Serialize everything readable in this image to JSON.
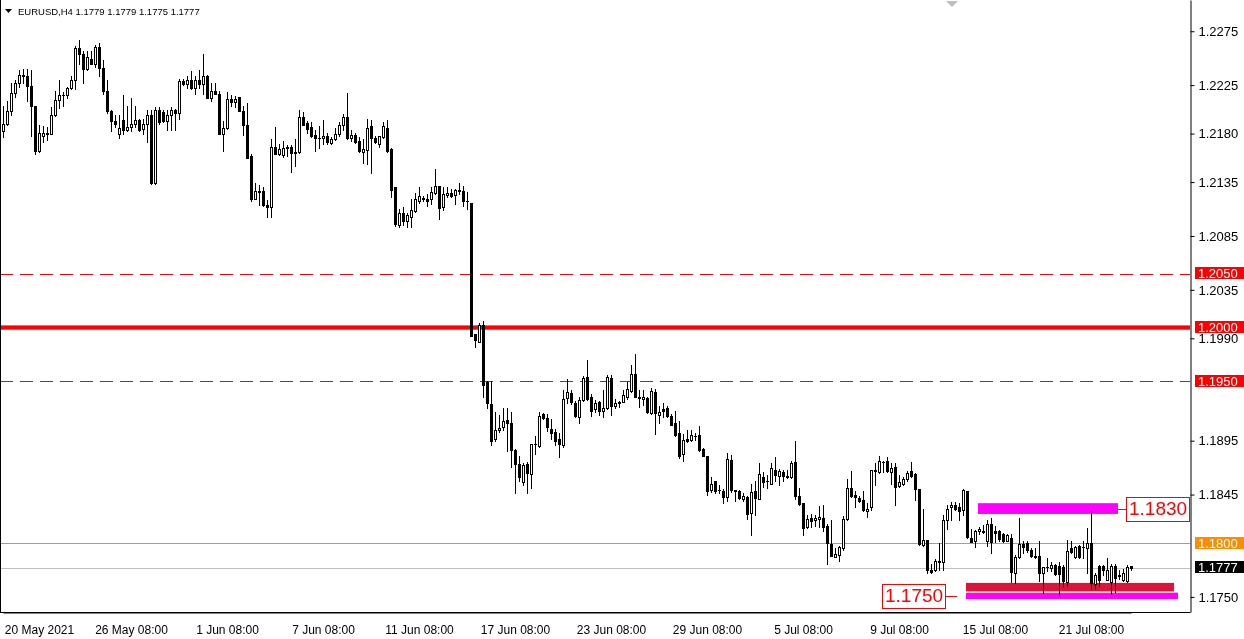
{
  "chart_data": {
    "type": "candlestick",
    "title": "EURUSD,H4 1.1779 1.1779 1.1775 1.1777",
    "categories": [
      null,
      null,
      null,
      null,
      null,
      null,
      null,
      null,
      null,
      "20 May 2021",
      null,
      null,
      null,
      null,
      null,
      null,
      null,
      null,
      null,
      null,
      null,
      null,
      null,
      null,
      null,
      null,
      null,
      null,
      null,
      null,
      null,
      null,
      "26 May 08:00",
      null,
      null,
      null,
      null,
      null,
      null,
      null,
      null,
      null,
      null,
      null,
      null,
      null,
      null,
      null,
      null,
      null,
      null,
      null,
      null,
      null,
      null,
      null,
      "1 Jun 08:00",
      null,
      null,
      null,
      null,
      null,
      null,
      null,
      null,
      null,
      null,
      null,
      null,
      null,
      null,
      null,
      null,
      null,
      null,
      null,
      null,
      null,
      null,
      null,
      "7 Jun 08:00",
      null,
      null,
      null,
      null,
      null,
      null,
      null,
      null,
      null,
      null,
      null,
      null,
      null,
      null,
      null,
      null,
      null,
      null,
      null,
      null,
      null,
      null,
      null,
      "11 Jun 08:00",
      null,
      null,
      null,
      null,
      null,
      null,
      null,
      null,
      null,
      null,
      null,
      null,
      null,
      null,
      null,
      null,
      null,
      null,
      null,
      null,
      null,
      null,
      null,
      "17 Jun 08:00",
      null,
      null,
      null,
      null,
      null,
      null,
      null,
      null,
      null,
      null,
      null,
      null,
      null,
      null,
      null,
      null,
      null,
      null,
      null,
      null,
      null,
      null,
      null,
      "23 Jun 08:00",
      null,
      null,
      null,
      null,
      null,
      null,
      null,
      null,
      null,
      null,
      null,
      null,
      null,
      null,
      null,
      null,
      null,
      null,
      null,
      null,
      null,
      null,
      null,
      "29 Jun 08:00",
      null,
      null,
      null,
      null,
      null,
      null,
      null,
      null,
      null,
      null,
      null,
      null,
      null,
      null,
      null,
      null,
      null,
      null,
      null,
      null,
      null,
      null,
      null,
      "5 Jul 08:00",
      null,
      null,
      null,
      null,
      null,
      null,
      null,
      null,
      null,
      null,
      null,
      null,
      null,
      null,
      null,
      null,
      null,
      null,
      null,
      null,
      null,
      null,
      null,
      "9 Jul 08:00",
      null,
      null,
      null,
      null,
      null,
      null,
      null,
      null,
      null,
      null,
      null,
      null,
      null,
      null,
      null,
      null,
      null,
      null,
      null,
      null,
      null,
      null,
      null,
      "15 Jul 08:00",
      null,
      null,
      null,
      null,
      null,
      null,
      null,
      null,
      null,
      null,
      null,
      null,
      null,
      null,
      null,
      null,
      null,
      null,
      null,
      null,
      null,
      null,
      null,
      "21 Jul 08:00",
      null,
      null,
      null,
      null,
      null,
      null,
      null,
      null,
      null,
      null
    ],
    "ohlc": [
      [
        1.2182,
        1.2206,
        1.2177,
        1.2189
      ],
      [
        1.2189,
        1.221,
        1.2188,
        1.2201
      ],
      [
        1.2201,
        1.2227,
        1.2197,
        1.2218
      ],
      [
        1.2218,
        1.223,
        1.2214,
        1.2227
      ],
      [
        1.2227,
        1.2239,
        1.2223,
        1.2234
      ],
      [
        1.2233,
        1.224,
        1.2227,
        1.2234
      ],
      [
        1.2233,
        1.224,
        1.221,
        1.2224
      ],
      [
        1.2224,
        1.2239,
        1.2178,
        1.2206
      ],
      [
        1.2206,
        1.2206,
        1.2161,
        1.2164
      ],
      [
        1.2164,
        1.2188,
        1.2163,
        1.2181
      ],
      [
        1.2178,
        1.2187,
        1.2172,
        1.2181
      ],
      [
        1.2181,
        1.2186,
        1.2174,
        1.218
      ],
      [
        1.218,
        1.2205,
        1.218,
        1.2197
      ],
      [
        1.2197,
        1.222,
        1.2196,
        1.2211
      ],
      [
        1.2211,
        1.223,
        1.2204,
        1.2216
      ],
      [
        1.2216,
        1.2219,
        1.2206,
        1.2216
      ],
      [
        1.2216,
        1.2223,
        1.2213,
        1.2222
      ],
      [
        1.2222,
        1.2233,
        1.2221,
        1.223
      ],
      [
        1.223,
        1.2261,
        1.2221,
        1.2259
      ],
      [
        1.2259,
        1.2267,
        1.2245,
        1.2254
      ],
      [
        1.2254,
        1.2257,
        1.2227,
        1.224
      ],
      [
        1.224,
        1.2257,
        1.2239,
        1.2251
      ],
      [
        1.2249,
        1.2257,
        1.2245,
        1.2245
      ],
      [
        1.2245,
        1.2262,
        1.2242,
        1.226
      ],
      [
        1.226,
        1.2264,
        1.2233,
        1.2241
      ],
      [
        1.2241,
        1.2248,
        1.2217,
        1.222
      ],
      [
        1.222,
        1.223,
        1.2199,
        1.2201
      ],
      [
        1.2201,
        1.2202,
        1.2182,
        1.2192
      ],
      [
        1.2192,
        1.2197,
        1.2186,
        1.2189
      ],
      [
        1.218,
        1.2197,
        1.2176,
        1.2185
      ],
      [
        1.2193,
        1.2216,
        1.218,
        1.2183
      ],
      [
        1.2183,
        1.2206,
        1.2182,
        1.2186
      ],
      [
        1.2186,
        1.2213,
        1.2182,
        1.2189
      ],
      [
        1.2189,
        1.2206,
        1.2186,
        1.2193
      ],
      [
        1.2193,
        1.2194,
        1.2182,
        1.2183
      ],
      [
        1.2184,
        1.2194,
        1.218,
        1.2189
      ],
      [
        1.2189,
        1.2202,
        1.2172,
        1.2197
      ],
      [
        1.2197,
        1.2202,
        1.2133,
        1.2134
      ],
      [
        1.2134,
        1.2205,
        1.2133,
        1.2202
      ],
      [
        1.2202,
        1.2205,
        1.2189,
        1.2191
      ],
      [
        1.22,
        1.2202,
        1.2191,
        1.2192
      ],
      [
        1.2192,
        1.2202,
        1.2183,
        1.2197
      ],
      [
        1.2197,
        1.2205,
        1.2183,
        1.2202
      ],
      [
        1.2202,
        1.2203,
        1.2183,
        1.2199
      ],
      [
        1.2199,
        1.2231,
        1.2194,
        1.2229
      ],
      [
        1.2229,
        1.2231,
        1.2225,
        1.2226
      ],
      [
        1.2226,
        1.2233,
        1.2222,
        1.223
      ],
      [
        1.223,
        1.2238,
        1.2221,
        1.2222
      ],
      [
        1.2222,
        1.2233,
        1.2217,
        1.223
      ],
      [
        1.223,
        1.2239,
        1.2222,
        1.2226
      ],
      [
        1.2226,
        1.2254,
        1.2217,
        1.2233
      ],
      [
        1.2233,
        1.2234,
        1.2213,
        1.2213
      ],
      [
        1.2213,
        1.2227,
        1.221,
        1.222
      ],
      [
        1.222,
        1.2227,
        1.2217,
        1.2217
      ],
      [
        1.2217,
        1.222,
        1.218,
        1.218
      ],
      [
        1.218,
        1.2192,
        1.2164,
        1.2185
      ],
      [
        1.2185,
        1.2219,
        1.2184,
        1.2212
      ],
      [
        1.2212,
        1.2216,
        1.2206,
        1.2209
      ],
      [
        1.2209,
        1.2215,
        1.2205,
        1.2212
      ],
      [
        1.2214,
        1.2214,
        1.2201,
        1.2201
      ],
      [
        1.2201,
        1.2206,
        1.2179,
        1.2188
      ],
      [
        1.2188,
        1.2208,
        1.2157,
        1.2157
      ],
      [
        1.2159,
        1.2161,
        1.2117,
        1.2119
      ],
      [
        1.2119,
        1.2134,
        1.2119,
        1.2127
      ],
      [
        1.2127,
        1.2132,
        1.2114,
        1.2126
      ],
      [
        1.2127,
        1.213,
        1.2113,
        1.2114
      ],
      [
        1.2114,
        1.2118,
        1.2103,
        1.2112
      ],
      [
        1.2112,
        1.2175,
        1.2103,
        1.2168
      ],
      [
        1.2168,
        1.2186,
        1.2161,
        1.2161
      ],
      [
        1.2161,
        1.217,
        1.216,
        1.2166
      ],
      [
        1.216,
        1.2173,
        1.2158,
        1.2167
      ],
      [
        1.2167,
        1.2169,
        1.2159,
        1.2168
      ],
      [
        1.2168,
        1.2169,
        1.2144,
        1.2162
      ],
      [
        1.2163,
        1.2175,
        1.215,
        1.2162
      ],
      [
        1.2163,
        1.2202,
        1.2162,
        1.2195
      ],
      [
        1.2195,
        1.22,
        1.2188,
        1.2188
      ],
      [
        1.219,
        1.2192,
        1.2181,
        1.2184
      ],
      [
        1.2186,
        1.2191,
        1.2177,
        1.2178
      ],
      [
        1.2179,
        1.2183,
        1.2164,
        1.2176
      ],
      [
        1.2176,
        1.2187,
        1.2167,
        1.2176
      ],
      [
        1.2176,
        1.2193,
        1.217,
        1.2178
      ],
      [
        1.2178,
        1.2181,
        1.217,
        1.2172
      ],
      [
        1.2171,
        1.2177,
        1.217,
        1.2175
      ],
      [
        1.2175,
        1.2185,
        1.2174,
        1.218
      ],
      [
        1.218,
        1.2191,
        1.2178,
        1.2188
      ],
      [
        1.2188,
        1.2198,
        1.2183,
        1.2195
      ],
      [
        1.2195,
        1.2218,
        1.2175,
        1.2176
      ],
      [
        1.2176,
        1.2183,
        1.2173,
        1.2179
      ],
      [
        1.2179,
        1.2181,
        1.2171,
        1.2172
      ],
      [
        1.2173,
        1.2177,
        1.2163,
        1.2164
      ],
      [
        1.2163,
        1.2175,
        1.2153,
        1.2166
      ],
      [
        1.2165,
        1.2194,
        1.2152,
        1.2185
      ],
      [
        1.2187,
        1.2193,
        1.2143,
        1.2176
      ],
      [
        1.2176,
        1.2178,
        1.2171,
        1.2172
      ],
      [
        1.217,
        1.2178,
        1.2168,
        1.2178
      ],
      [
        1.2177,
        1.2191,
        1.2176,
        1.2187
      ],
      [
        1.2185,
        1.2193,
        1.2163,
        1.2164
      ],
      [
        1.2166,
        1.2167,
        1.2121,
        1.2128
      ],
      [
        1.213,
        1.213,
        1.2094,
        1.2096
      ],
      [
        1.2095,
        1.211,
        1.2093,
        1.2106
      ],
      [
        1.2106,
        1.2112,
        1.2095,
        1.2099
      ],
      [
        1.2099,
        1.2106,
        1.2093,
        1.2104
      ],
      [
        1.2103,
        1.2119,
        1.2093,
        1.2109
      ],
      [
        1.2108,
        1.2125,
        1.2107,
        1.2119
      ],
      [
        1.2117,
        1.213,
        1.2116,
        1.2122
      ],
      [
        1.212,
        1.2122,
        1.2117,
        1.2119
      ],
      [
        1.2119,
        1.2124,
        1.2113,
        1.2117
      ],
      [
        1.2119,
        1.213,
        1.2115,
        1.2126
      ],
      [
        1.2125,
        1.2147,
        1.2124,
        1.2131
      ],
      [
        1.2131,
        1.2131,
        1.2101,
        1.2111
      ],
      [
        1.2112,
        1.213,
        1.2109,
        1.2124
      ],
      [
        1.2123,
        1.213,
        1.2121,
        1.2125
      ],
      [
        1.2125,
        1.2129,
        1.2121,
        1.2122
      ],
      [
        1.2123,
        1.2129,
        1.2115,
        1.2128
      ],
      [
        1.2128,
        1.2134,
        1.2124,
        1.2127
      ],
      [
        1.2127,
        1.2131,
        1.2113,
        1.2117
      ],
      [
        1.2117,
        1.2126,
        1.211,
        1.2117
      ],
      [
        1.2116,
        1.2116,
        1.1992,
        1.1992
      ],
      [
        1.1994,
        1.1994,
        1.1982,
        1.1988
      ],
      [
        1.1987,
        1.2004,
        1.1987,
        1.2002
      ],
      [
        1.2002,
        1.2006,
        1.1936,
        1.1947
      ],
      [
        1.1949,
        1.195,
        1.1925,
        1.193
      ],
      [
        1.1929,
        1.195,
        1.1891,
        1.1895
      ],
      [
        1.1897,
        1.1922,
        1.1895,
        1.1905
      ],
      [
        1.1905,
        1.1919,
        1.1903,
        1.1907
      ],
      [
        1.1908,
        1.1925,
        1.1905,
        1.1913
      ],
      [
        1.1914,
        1.1925,
        1.1885,
        1.1911
      ],
      [
        1.1911,
        1.1922,
        1.1871,
        1.1886
      ],
      [
        1.1886,
        1.1887,
        1.1846,
        1.1873
      ],
      [
        1.1873,
        1.1881,
        1.1858,
        1.1861
      ],
      [
        1.1857,
        1.1874,
        1.1854,
        1.1872
      ],
      [
        1.1873,
        1.1875,
        1.1846,
        1.1865
      ],
      [
        1.1864,
        1.1892,
        1.1851,
        1.1892
      ],
      [
        1.1892,
        1.1899,
        1.1883,
        1.1892
      ],
      [
        1.189,
        1.1922,
        1.1889,
        1.1918
      ],
      [
        1.192,
        1.1921,
        1.1915,
        1.1916
      ],
      [
        1.1916,
        1.192,
        1.1904,
        1.1908
      ],
      [
        1.1906,
        1.1915,
        1.1897,
        1.1902
      ],
      [
        1.1903,
        1.1906,
        1.1891,
        1.1895
      ],
      [
        1.1897,
        1.1902,
        1.188,
        1.1892
      ],
      [
        1.1891,
        1.1942,
        1.1889,
        1.1934
      ],
      [
        1.1935,
        1.1952,
        1.193,
        1.194
      ],
      [
        1.1939,
        1.1942,
        1.1929,
        1.1931
      ],
      [
        1.193,
        1.1932,
        1.1917,
        1.1918
      ],
      [
        1.1917,
        1.1936,
        1.1911,
        1.1933
      ],
      [
        1.1933,
        1.1955,
        1.1932,
        1.1953
      ],
      [
        1.1954,
        1.197,
        1.1933,
        1.1934
      ],
      [
        1.1936,
        1.1938,
        1.1918,
        1.1923
      ],
      [
        1.1924,
        1.1933,
        1.1922,
        1.193
      ],
      [
        1.1931,
        1.1932,
        1.1919,
        1.1923
      ],
      [
        1.1923,
        1.1942,
        1.1917,
        1.1925
      ],
      [
        1.1925,
        1.1956,
        1.1924,
        1.1954
      ],
      [
        1.1953,
        1.1956,
        1.1919,
        1.1927
      ],
      [
        1.1927,
        1.1934,
        1.1925,
        1.193
      ],
      [
        1.193,
        1.1932,
        1.1926,
        1.1931
      ],
      [
        1.1931,
        1.1942,
        1.1931,
        1.1937
      ],
      [
        1.1936,
        1.1949,
        1.1934,
        1.1943
      ],
      [
        1.1941,
        1.1965,
        1.194,
        1.1957
      ],
      [
        1.1957,
        1.1975,
        1.1936,
        1.1936
      ],
      [
        1.1936,
        1.1942,
        1.1926,
        1.1935
      ],
      [
        1.1934,
        1.1942,
        1.1928,
        1.1936
      ],
      [
        1.1935,
        1.1936,
        1.1921,
        1.1922
      ],
      [
        1.1921,
        1.1944,
        1.192,
        1.1941
      ],
      [
        1.194,
        1.1943,
        1.1901,
        1.1921
      ],
      [
        1.1919,
        1.1927,
        1.1911,
        1.1922
      ],
      [
        1.1924,
        1.193,
        1.1917,
        1.1923
      ],
      [
        1.1925,
        1.1927,
        1.1917,
        1.1918
      ],
      [
        1.1918,
        1.192,
        1.191,
        1.191
      ],
      [
        1.1911,
        1.1923,
        1.1899,
        1.19
      ],
      [
        1.1902,
        1.1913,
        1.1879,
        1.1881
      ],
      [
        1.1883,
        1.1901,
        1.1876,
        1.1896
      ],
      [
        1.1897,
        1.1905,
        1.1894,
        1.1895
      ],
      [
        1.1896,
        1.1905,
        1.1895,
        1.19
      ],
      [
        1.1899,
        1.1902,
        1.1896,
        1.1899
      ],
      [
        1.19,
        1.1909,
        1.1885,
        1.1886
      ],
      [
        1.1887,
        1.1888,
        1.1881,
        1.1881
      ],
      [
        1.1881,
        1.1881,
        1.1845,
        1.1848
      ],
      [
        1.1849,
        1.1861,
        1.1847,
        1.1855
      ],
      [
        1.1858,
        1.1858,
        1.1846,
        1.1848
      ],
      [
        1.1849,
        1.1854,
        1.1846,
        1.1849
      ],
      [
        1.1848,
        1.185,
        1.1837,
        1.1843
      ],
      [
        1.1843,
        1.1884,
        1.1839,
        1.1878
      ],
      [
        1.1877,
        1.1882,
        1.1847,
        1.1849
      ],
      [
        1.1849,
        1.1849,
        1.1839,
        1.1848
      ],
      [
        1.1848,
        1.1849,
        1.1841,
        1.1842
      ],
      [
        1.1841,
        1.1846,
        1.1839,
        1.1844
      ],
      [
        1.1843,
        1.1844,
        1.1822,
        1.1827
      ],
      [
        1.1828,
        1.1855,
        1.1807,
        1.1847
      ],
      [
        1.1848,
        1.1858,
        1.1826,
        1.1842
      ],
      [
        1.1841,
        1.1874,
        1.1841,
        1.1864
      ],
      [
        1.1861,
        1.1866,
        1.1852,
        1.1857
      ],
      [
        1.1858,
        1.1863,
        1.1851,
        1.1858
      ],
      [
        1.1855,
        1.1874,
        1.1855,
        1.187
      ],
      [
        1.1868,
        1.188,
        1.1858,
        1.1863
      ],
      [
        1.1862,
        1.1869,
        1.1854,
        1.1867
      ],
      [
        1.1866,
        1.1868,
        1.1858,
        1.1862
      ],
      [
        1.1862,
        1.1868,
        1.186,
        1.1861
      ],
      [
        1.1861,
        1.1876,
        1.186,
        1.1874
      ],
      [
        1.1875,
        1.1895,
        1.1841,
        1.1844
      ],
      [
        1.1844,
        1.1851,
        1.1835,
        1.1836
      ],
      [
        1.1837,
        1.1837,
        1.1807,
        1.1814
      ],
      [
        1.1815,
        1.1826,
        1.1814,
        1.1822
      ],
      [
        1.1823,
        1.1827,
        1.1815,
        1.182
      ],
      [
        1.1821,
        1.1826,
        1.1816,
        1.1823
      ],
      [
        1.1822,
        1.1834,
        1.1815,
        1.1824
      ],
      [
        1.1823,
        1.1835,
        1.1811,
        1.1815
      ],
      [
        1.1816,
        1.1818,
        1.1781,
        1.18
      ],
      [
        1.1799,
        1.1821,
        1.1788,
        1.1788
      ],
      [
        1.1787,
        1.1795,
        1.1787,
        1.179
      ],
      [
        1.1789,
        1.1797,
        1.1783,
        1.1796
      ],
      [
        1.1795,
        1.1825,
        1.1794,
        1.1822
      ],
      [
        1.1822,
        1.1859,
        1.1821,
        1.1851
      ],
      [
        1.1851,
        1.1867,
        1.1843,
        1.1844
      ],
      [
        1.1845,
        1.1848,
        1.1833,
        1.1843
      ],
      [
        1.1842,
        1.1844,
        1.1838,
        1.1839
      ],
      [
        1.184,
        1.1848,
        1.183,
        1.1831
      ],
      [
        1.183,
        1.1837,
        1.1824,
        1.1832
      ],
      [
        1.1833,
        1.1868,
        1.1831,
        1.1868
      ],
      [
        1.1868,
        1.1874,
        1.1854,
        1.1867
      ],
      [
        1.1866,
        1.1881,
        1.1865,
        1.1876
      ],
      [
        1.1875,
        1.1876,
        1.1866,
        1.1875
      ],
      [
        1.1876,
        1.188,
        1.1866,
        1.1867
      ],
      [
        1.1866,
        1.1874,
        1.1855,
        1.187
      ],
      [
        1.1871,
        1.1874,
        1.1835,
        1.1852
      ],
      [
        1.1853,
        1.1863,
        1.1852,
        1.1857
      ],
      [
        1.1855,
        1.1861,
        1.1854,
        1.1859
      ],
      [
        1.1859,
        1.1867,
        1.1858,
        1.1865
      ],
      [
        1.1867,
        1.1875,
        1.1861,
        1.1862
      ],
      [
        1.1864,
        1.1865,
        1.184,
        1.185
      ],
      [
        1.185,
        1.185,
        1.1798,
        1.1799
      ],
      [
        1.1798,
        1.1832,
        1.1797,
        1.1803
      ],
      [
        1.1803,
        1.1803,
        1.1772,
        1.1775
      ],
      [
        1.1775,
        1.1781,
        1.1772,
        1.1773
      ],
      [
        1.1775,
        1.1785,
        1.1774,
        1.1783
      ],
      [
        1.1783,
        1.18,
        1.1775,
        1.1782
      ],
      [
        1.1782,
        1.1826,
        1.1775,
        1.1821
      ],
      [
        1.1821,
        1.1835,
        1.1813,
        1.1832
      ],
      [
        1.1833,
        1.1838,
        1.1821,
        1.1835
      ],
      [
        1.1835,
        1.1838,
        1.1831,
        1.1832
      ],
      [
        1.1833,
        1.1837,
        1.1821,
        1.183
      ],
      [
        1.1831,
        1.185,
        1.1826,
        1.1849
      ],
      [
        1.1848,
        1.1848,
        1.1805,
        1.1806
      ],
      [
        1.1805,
        1.1813,
        1.1801,
        1.1801
      ],
      [
        1.1802,
        1.1812,
        1.1796,
        1.1811
      ],
      [
        1.1811,
        1.1815,
        1.1808,
        1.1813
      ],
      [
        1.1811,
        1.1817,
        1.1809,
        1.181
      ],
      [
        1.1802,
        1.1821,
        1.1797,
        1.1818
      ],
      [
        1.1818,
        1.1823,
        1.1791,
        1.1801
      ],
      [
        1.1811,
        1.1816,
        1.1801,
        1.1809
      ],
      [
        1.1811,
        1.1812,
        1.1802,
        1.1804
      ],
      [
        1.1808,
        1.1809,
        1.1801,
        1.1802
      ],
      [
        1.1802,
        1.1808,
        1.1802,
        1.1807
      ],
      [
        1.1805,
        1.1808,
        1.1764,
        1.1773
      ],
      [
        1.1772,
        1.1789,
        1.1763,
        1.1787
      ],
      [
        1.1787,
        1.1823,
        1.1786,
        1.1799
      ],
      [
        1.1799,
        1.1802,
        1.1791,
        1.1796
      ],
      [
        1.18,
        1.1802,
        1.1792,
        1.1794
      ],
      [
        1.1794,
        1.1795,
        1.1787,
        1.1788
      ],
      [
        1.1788,
        1.1795,
        1.1786,
        1.1787
      ],
      [
        1.1788,
        1.1802,
        1.1765,
        1.1772
      ],
      [
        1.1772,
        1.1778,
        1.1754,
        1.1778
      ],
      [
        1.1778,
        1.1786,
        1.1774,
        1.1778
      ],
      [
        1.1777,
        1.1782,
        1.1774,
        1.178
      ],
      [
        1.178,
        1.1781,
        1.177,
        1.1771
      ],
      [
        1.1779,
        1.1782,
        1.1751,
        1.1771
      ],
      [
        1.1778,
        1.178,
        1.1759,
        1.1765
      ],
      [
        1.1764,
        1.1803,
        1.176,
        1.1793
      ],
      [
        1.1795,
        1.1802,
        1.1791,
        1.1792
      ],
      [
        1.1787,
        1.1797,
        1.1786,
        1.1796
      ],
      [
        1.1797,
        1.1798,
        1.1786,
        1.1787
      ],
      [
        1.1796,
        1.1802,
        1.1786,
        1.1796
      ],
      [
        1.1795,
        1.1814,
        1.1772,
        1.18
      ],
      [
        1.18,
        1.183,
        1.1757,
        1.1763
      ],
      [
        1.1762,
        1.1772,
        1.1757,
        1.177
      ],
      [
        1.1779,
        1.178,
        1.176,
        1.1766
      ],
      [
        1.1779,
        1.178,
        1.177,
        1.1775
      ],
      [
        1.1766,
        1.1786,
        1.1766,
        1.1775
      ],
      [
        1.1764,
        1.1781,
        1.1753,
        1.1779
      ],
      [
        1.1779,
        1.1781,
        1.1755,
        1.1768
      ],
      [
        1.177,
        1.1775,
        1.1767,
        1.1769
      ],
      [
        1.1766,
        1.1776,
        1.1765,
        1.1772
      ],
      [
        1.1765,
        1.178,
        1.1764,
        1.1778
      ],
      [
        1.1779,
        1.1779,
        1.1775,
        1.1777
      ]
    ],
    "ylim": [
      1.1736,
      1.2304
    ],
    "yticks": [
      1.2275,
      1.2225,
      {
        "value": 1.218,
        "label": "1.2180"
      },
      1.2135,
      1.2085,
      1.2035,
      {
        "value": 1.199,
        "label": "1.1990"
      },
      1.1895,
      1.1845,
      {
        "value": 1.175,
        "label": "1.1750"
      }
    ],
    "ref_lines": [
      {
        "axis": "y",
        "value": 1.205,
        "label": "1.2050",
        "color": "#ff0000",
        "line_style": "dashed"
      },
      {
        "axis": "y",
        "value": 1.195,
        "label": "1.1950",
        "color": "#ff0000",
        "line_style": "dashed"
      },
      {
        "axis": "y",
        "value": 1.18,
        "label": "1.1800",
        "color": "#ff8c00",
        "line_style": "solid"
      },
      {
        "axis": "y",
        "value": 1.1777,
        "label": "1.1777",
        "color": "#c0c0c0",
        "line_style": "solid"
      }
    ],
    "bands": [
      {
        "axis": "y",
        "from": 1.1998,
        "to": 1.2002,
        "label": "1.2000",
        "color": "#ff0000"
      },
      {
        "axis": "y",
        "from": 1.1827,
        "to": 1.1837,
        "label": "1.1830",
        "color": "#ff00ff"
      },
      {
        "axis": "y",
        "from": 1.1755,
        "to": 1.1763,
        "color": "#dc143c"
      },
      {
        "axis": "y",
        "from": 1.1748,
        "to": 1.1754,
        "label": "1.1750",
        "color": "#ff00ff"
      },
      {
        "axis": "y",
        "from": 1.1754,
        "to": 1.1755,
        "color": "#f0e68c"
      }
    ]
  }
}
